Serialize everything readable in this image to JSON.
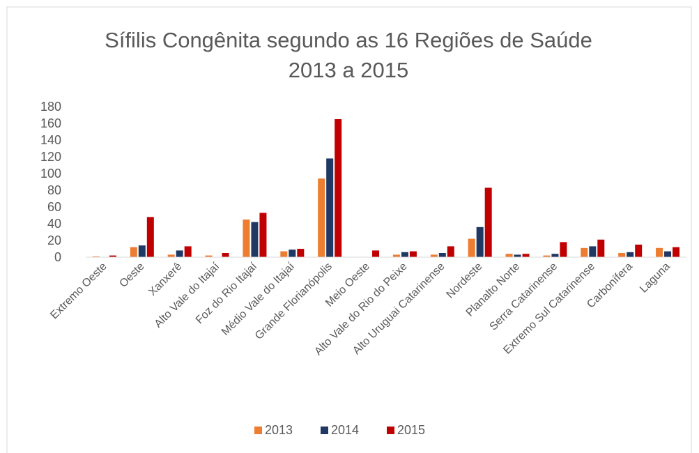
{
  "chart_data": {
    "type": "bar",
    "title": [
      "Sífilis Congênita segundo as 16 Regiões de Saúde",
      "2013 a 2015"
    ],
    "categories": [
      "Extremo Oeste",
      "Oeste",
      "Xanxerê",
      "Alto Vale do Itajaí",
      "Foz do Rio Itajaí",
      "Médio Vale do Itajaí",
      "Grande Florianópolis",
      "Meio Oeste",
      "Alto Vale do Rio do Peixe",
      "Alto Uruguai Catarinense",
      "Nordeste",
      "Planalto Norte",
      "Serra Catarinense",
      "Extremo Sul Catarinense",
      "Carbonífera",
      "Laguna"
    ],
    "series": [
      {
        "name": "2013",
        "color": "#ed7d31",
        "values": [
          1,
          12,
          3,
          2,
          45,
          7,
          94,
          0,
          3,
          3,
          22,
          4,
          2,
          11,
          5,
          11
        ]
      },
      {
        "name": "2014",
        "color": "#203864",
        "values": [
          0,
          14,
          8,
          0,
          42,
          9,
          118,
          0,
          6,
          5,
          36,
          3,
          4,
          13,
          6,
          7
        ]
      },
      {
        "name": "2015",
        "color": "#c00000",
        "values": [
          2,
          48,
          13,
          5,
          53,
          10,
          165,
          8,
          7,
          13,
          83,
          4,
          18,
          21,
          15,
          12
        ]
      }
    ],
    "ylim": [
      0,
      180
    ],
    "yticks": [
      0,
      20,
      40,
      60,
      80,
      100,
      120,
      140,
      160,
      180
    ],
    "grid": false,
    "legend": "bottom"
  }
}
